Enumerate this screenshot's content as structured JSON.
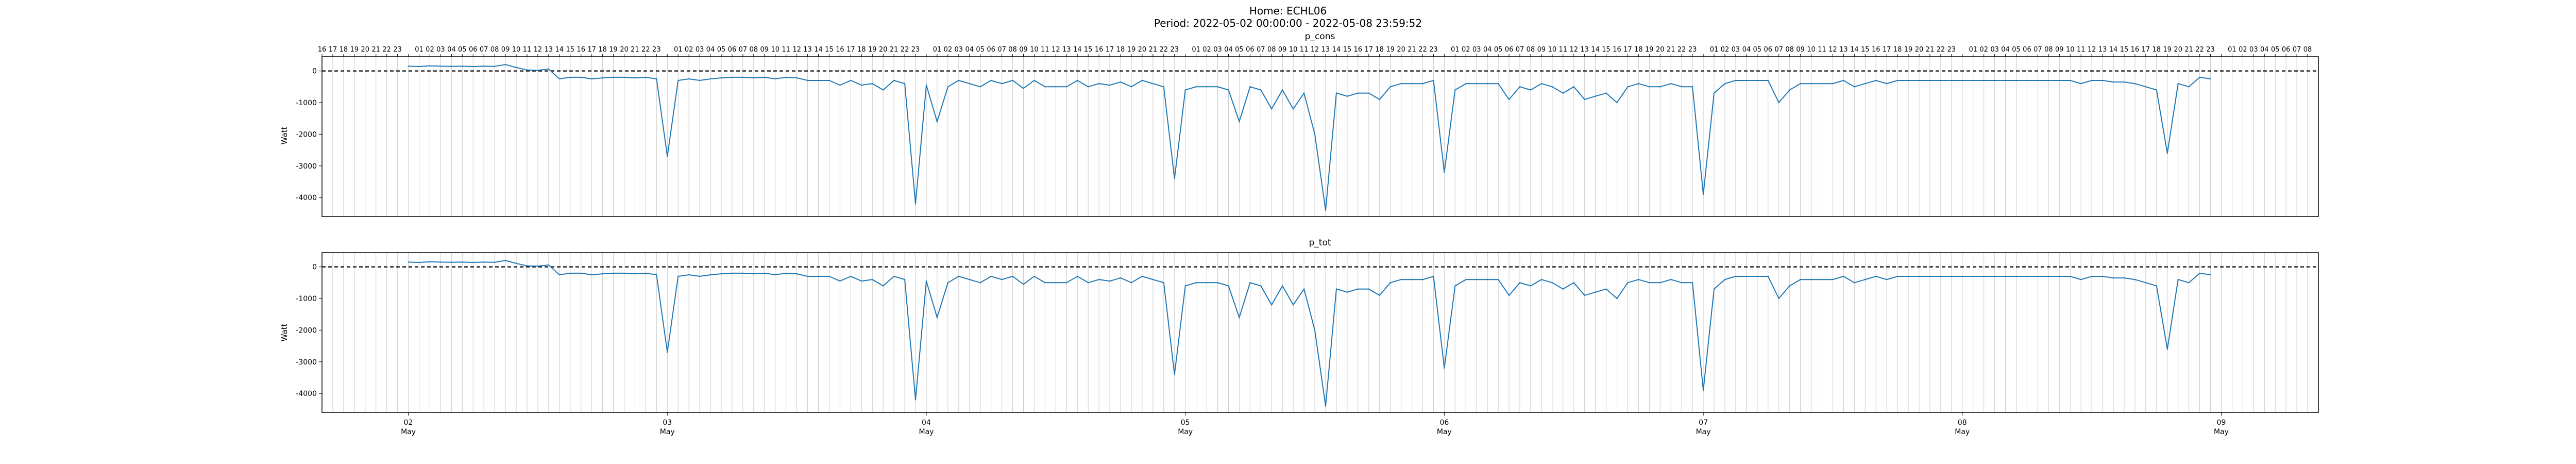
{
  "figure": {
    "title_line1": "Home: ECHL06",
    "title_line2": "Period: 2022-05-02 00:00:00 - 2022-05-08 23:59:52"
  },
  "chart_data": [
    {
      "type": "line",
      "title": "p_cons",
      "ylabel": "Watt",
      "xlabel": "",
      "ylim": [
        -4600,
        450
      ],
      "xlim": [
        -8,
        177
      ],
      "yticks": [
        0,
        -1000,
        -2000,
        -3000,
        -4000
      ],
      "grid": "vertical hourly lines",
      "reference_line": {
        "y": 0,
        "style": "dashed",
        "color": "#000000"
      },
      "series": [
        {
          "color": "#1f77b4",
          "x": [
            0,
            1,
            2,
            3,
            4,
            5,
            6,
            7,
            8,
            9,
            10,
            11,
            12,
            13,
            14,
            15,
            16,
            17,
            18,
            19,
            20,
            21,
            22,
            23,
            24,
            25,
            26,
            27,
            28,
            29,
            30,
            31,
            32,
            33,
            34,
            35,
            36,
            37,
            38,
            39,
            40,
            41,
            42,
            43,
            44,
            45,
            46,
            47,
            48,
            49,
            50,
            51,
            52,
            53,
            54,
            55,
            56,
            57,
            58,
            59,
            60,
            61,
            62,
            63,
            64,
            65,
            66,
            67,
            68,
            69,
            70,
            71,
            72,
            73,
            74,
            75,
            76,
            77,
            78,
            79,
            80,
            81,
            82,
            83,
            84,
            85,
            86,
            87,
            88,
            89,
            90,
            91,
            92,
            93,
            94,
            95,
            96,
            97,
            98,
            99,
            100,
            101,
            102,
            103,
            104,
            105,
            106,
            107,
            108,
            109,
            110,
            111,
            112,
            113,
            114,
            115,
            116,
            117,
            118,
            119,
            120,
            121,
            122,
            123,
            124,
            125,
            126,
            127,
            128,
            129,
            130,
            131,
            132,
            133,
            134,
            135,
            136,
            137,
            138,
            139,
            140,
            141,
            142,
            143,
            144,
            145,
            146,
            147,
            148,
            149,
            150,
            151,
            152,
            153,
            154,
            155,
            156,
            157,
            158,
            159,
            160,
            161,
            162,
            163,
            164,
            165,
            166,
            167
          ],
          "y": [
            150,
            140,
            160,
            150,
            145,
            150,
            140,
            150,
            145,
            200,
            110,
            30,
            20,
            60,
            -250,
            -200,
            -200,
            -250,
            -220,
            -200,
            -200,
            -220,
            -200,
            -250,
            -2700,
            -300,
            -250,
            -300,
            -250,
            -220,
            -200,
            -200,
            -220,
            -200,
            -250,
            -200,
            -220,
            -300,
            -300,
            -300,
            -450,
            -300,
            -450,
            -400,
            -600,
            -300,
            -400,
            -4200,
            -450,
            -1600,
            -500,
            -300,
            -400,
            -500,
            -300,
            -400,
            -300,
            -550,
            -300,
            -500,
            -500,
            -500,
            -300,
            -500,
            -400,
            -450,
            -350,
            -500,
            -300,
            -400,
            -500,
            -3400,
            -600,
            -500,
            -500,
            -500,
            -600,
            -1600,
            -500,
            -600,
            -1200,
            -600,
            -1200,
            -700,
            -2000,
            -4400,
            -700,
            -800,
            -700,
            -700,
            -900,
            -500,
            -400,
            -400,
            -400,
            -300,
            -3200,
            -600,
            -400,
            -400,
            -400,
            -400,
            -900,
            -500,
            -600,
            -400,
            -500,
            -700,
            -500,
            -900,
            -800,
            -700,
            -1000,
            -500,
            -400,
            -500,
            -500,
            -400,
            -500,
            -500,
            -3900,
            -700,
            -400,
            -300,
            -300,
            -300,
            -300,
            -1000,
            -600,
            -400,
            -400,
            -400,
            -400,
            -300,
            -500,
            -400,
            -300,
            -400,
            -300,
            -300,
            -300,
            -300,
            -300,
            -300,
            -300,
            -300,
            -300,
            -300,
            -300,
            -300,
            -300,
            -300,
            -300,
            -300,
            -300,
            -400,
            -300,
            -300,
            -350,
            -350,
            -400,
            -500,
            -600,
            -2600,
            -400,
            -500,
            -200,
            -250
          ]
        }
      ],
      "top_tick_labels": [
        "16",
        "17",
        "18",
        "19",
        "20",
        "21",
        "22",
        "23",
        "",
        "01",
        "02",
        "03",
        "04",
        "05",
        "06",
        "07",
        "08",
        "09",
        "10",
        "11",
        "12",
        "13",
        "14",
        "15",
        "16",
        "17",
        "18",
        "19",
        "20",
        "21",
        "22",
        "23",
        "",
        "01",
        "02",
        "03",
        "04",
        "05",
        "06",
        "07",
        "08",
        "09",
        "10",
        "11",
        "12",
        "13",
        "14",
        "15",
        "16",
        "17",
        "18",
        "19",
        "20",
        "21",
        "22",
        "23",
        "",
        "01",
        "02",
        "03",
        "04",
        "05",
        "06",
        "07",
        "08",
        "09",
        "10",
        "11",
        "12",
        "13",
        "14",
        "15",
        "16",
        "17",
        "18",
        "19",
        "20",
        "21",
        "22",
        "23",
        "",
        "01",
        "02",
        "03",
        "04",
        "05",
        "06",
        "07",
        "08",
        "09",
        "10",
        "11",
        "12",
        "13",
        "14",
        "15",
        "16",
        "17",
        "18",
        "19",
        "20",
        "21",
        "22",
        "23",
        "",
        "01",
        "02",
        "03",
        "04",
        "05",
        "06",
        "07",
        "08",
        "09",
        "10",
        "11",
        "12",
        "13",
        "14",
        "15",
        "16",
        "17",
        "18",
        "19",
        "20",
        "21",
        "22",
        "23",
        "",
        "01",
        "02",
        "03",
        "04",
        "05",
        "06",
        "07",
        "08",
        "09",
        "10",
        "11",
        "12",
        "13",
        "14",
        "15",
        "16",
        "17",
        "18",
        "19",
        "20",
        "21",
        "22",
        "23",
        "",
        "01",
        "02",
        "03",
        "04",
        "05",
        "06",
        "07",
        "08",
        "09",
        "10",
        "11",
        "12",
        "13",
        "14",
        "15",
        "16",
        "17",
        "18",
        "19",
        "20",
        "21",
        "22",
        "23",
        "",
        "01",
        "02",
        "03",
        "04",
        "05",
        "06",
        "07",
        "08"
      ]
    },
    {
      "type": "line",
      "title": "p_tot",
      "ylabel": "Watt",
      "xlabel": "",
      "ylim": [
        -4600,
        450
      ],
      "xlim": [
        -8,
        177
      ],
      "yticks": [
        0,
        -1000,
        -2000,
        -3000,
        -4000
      ],
      "grid": "vertical hourly lines",
      "reference_line": {
        "y": 0,
        "style": "dashed",
        "color": "#000000"
      },
      "bottom_tick_labels": [
        {
          "day": "02",
          "month": "May",
          "x": 0
        },
        {
          "day": "03",
          "month": "May",
          "x": 24
        },
        {
          "day": "04",
          "month": "May",
          "x": 48
        },
        {
          "day": "05",
          "month": "May",
          "x": 72
        },
        {
          "day": "06",
          "month": "May",
          "x": 96
        },
        {
          "day": "07",
          "month": "May",
          "x": 120
        },
        {
          "day": "08",
          "month": "May",
          "x": 144
        },
        {
          "day": "09",
          "month": "May",
          "x": 168
        }
      ],
      "series": [
        {
          "color": "#1f77b4",
          "x": [
            0,
            1,
            2,
            3,
            4,
            5,
            6,
            7,
            8,
            9,
            10,
            11,
            12,
            13,
            14,
            15,
            16,
            17,
            18,
            19,
            20,
            21,
            22,
            23,
            24,
            25,
            26,
            27,
            28,
            29,
            30,
            31,
            32,
            33,
            34,
            35,
            36,
            37,
            38,
            39,
            40,
            41,
            42,
            43,
            44,
            45,
            46,
            47,
            48,
            49,
            50,
            51,
            52,
            53,
            54,
            55,
            56,
            57,
            58,
            59,
            60,
            61,
            62,
            63,
            64,
            65,
            66,
            67,
            68,
            69,
            70,
            71,
            72,
            73,
            74,
            75,
            76,
            77,
            78,
            79,
            80,
            81,
            82,
            83,
            84,
            85,
            86,
            87,
            88,
            89,
            90,
            91,
            92,
            93,
            94,
            95,
            96,
            97,
            98,
            99,
            100,
            101,
            102,
            103,
            104,
            105,
            106,
            107,
            108,
            109,
            110,
            111,
            112,
            113,
            114,
            115,
            116,
            117,
            118,
            119,
            120,
            121,
            122,
            123,
            124,
            125,
            126,
            127,
            128,
            129,
            130,
            131,
            132,
            133,
            134,
            135,
            136,
            137,
            138,
            139,
            140,
            141,
            142,
            143,
            144,
            145,
            146,
            147,
            148,
            149,
            150,
            151,
            152,
            153,
            154,
            155,
            156,
            157,
            158,
            159,
            160,
            161,
            162,
            163,
            164,
            165,
            166,
            167
          ],
          "y": [
            150,
            140,
            160,
            150,
            145,
            150,
            140,
            150,
            145,
            200,
            110,
            30,
            20,
            60,
            -250,
            -200,
            -200,
            -250,
            -220,
            -200,
            -200,
            -220,
            -200,
            -250,
            -2700,
            -300,
            -250,
            -300,
            -250,
            -220,
            -200,
            -200,
            -220,
            -200,
            -250,
            -200,
            -220,
            -300,
            -300,
            -300,
            -450,
            -300,
            -450,
            -400,
            -600,
            -300,
            -400,
            -4200,
            -450,
            -1600,
            -500,
            -300,
            -400,
            -500,
            -300,
            -400,
            -300,
            -550,
            -300,
            -500,
            -500,
            -500,
            -300,
            -500,
            -400,
            -450,
            -350,
            -500,
            -300,
            -400,
            -500,
            -3400,
            -600,
            -500,
            -500,
            -500,
            -600,
            -1600,
            -500,
            -600,
            -1200,
            -600,
            -1200,
            -700,
            -2000,
            -4400,
            -700,
            -800,
            -700,
            -700,
            -900,
            -500,
            -400,
            -400,
            -400,
            -300,
            -3200,
            -600,
            -400,
            -400,
            -400,
            -400,
            -900,
            -500,
            -600,
            -400,
            -500,
            -700,
            -500,
            -900,
            -800,
            -700,
            -1000,
            -500,
            -400,
            -500,
            -500,
            -400,
            -500,
            -500,
            -3900,
            -700,
            -400,
            -300,
            -300,
            -300,
            -300,
            -1000,
            -600,
            -400,
            -400,
            -400,
            -400,
            -300,
            -500,
            -400,
            -300,
            -400,
            -300,
            -300,
            -300,
            -300,
            -300,
            -300,
            -300,
            -300,
            -300,
            -300,
            -300,
            -300,
            -300,
            -300,
            -300,
            -300,
            -300,
            -400,
            -300,
            -300,
            -350,
            -350,
            -400,
            -500,
            -600,
            -2600,
            -400,
            -500,
            -200,
            -250
          ]
        }
      ]
    }
  ]
}
